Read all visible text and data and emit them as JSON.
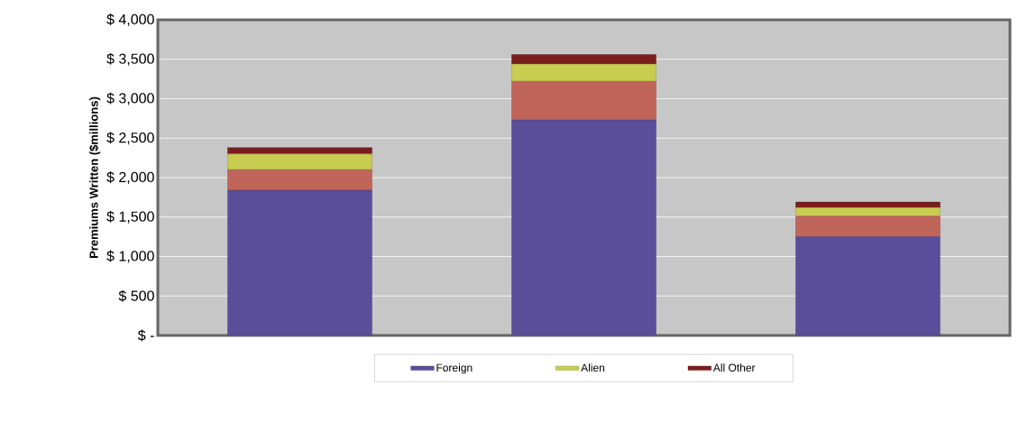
{
  "chart_data": {
    "type": "bar",
    "stacked": true,
    "ylabel": "Premiums Written ($millions)",
    "categories": [
      null,
      null,
      null
    ],
    "series": [
      {
        "name": "Foreign",
        "color": "#5a4e9a",
        "values": [
          1840,
          2730,
          1250
        ]
      },
      {
        "color": "#c0655a",
        "values": [
          260,
          490,
          260
        ]
      },
      {
        "name": "Alien",
        "color": "#c8cc50",
        "values": [
          200,
          220,
          110
        ]
      },
      {
        "name": "All Other",
        "color": "#7a1e1e",
        "values": [
          80,
          120,
          70
        ]
      }
    ],
    "ylim": [
      0,
      4000
    ],
    "yticks": [
      {
        "value": 0,
        "label": "$ -"
      },
      {
        "value": 500,
        "label": "$ 500"
      },
      {
        "value": 1000,
        "label": "$ 1,000"
      },
      {
        "value": 1500,
        "label": "$ 1,500"
      },
      {
        "value": 2000,
        "label": "$ 2,000"
      },
      {
        "value": 2500,
        "label": "$ 2,500"
      },
      {
        "value": 3000,
        "label": "$ 3,000"
      },
      {
        "value": 3500,
        "label": "$ 3,500"
      },
      {
        "value": 4000,
        "label": "$ 4,000"
      }
    ],
    "grid": "y",
    "legend": "bottom"
  }
}
